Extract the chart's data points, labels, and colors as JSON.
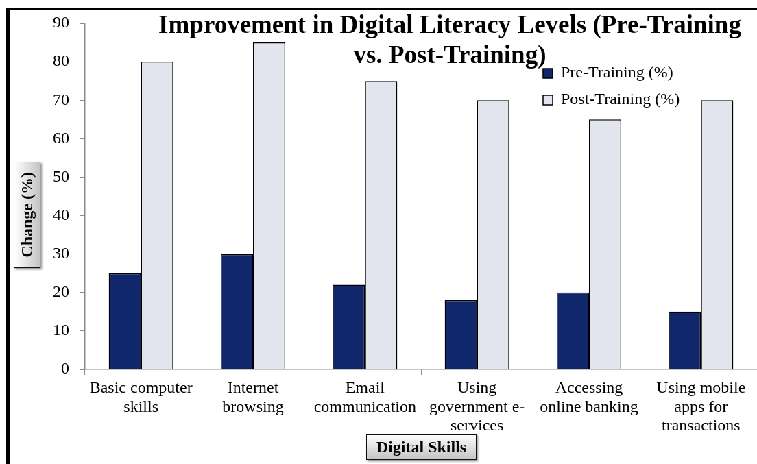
{
  "chart_data": {
    "type": "bar",
    "title": "Improvement in Digital Literacy Levels (Pre-Training vs. Post-Training)",
    "xlabel": "Digital Skills",
    "ylabel": "Change (%)",
    "categories": [
      "Basic computer skills",
      "Internet browsing",
      "Email communication",
      "Using government e-services",
      "Accessing online banking",
      "Using mobile apps for transactions"
    ],
    "series": [
      {
        "name": "Pre-Training (%)",
        "color": "#10286b",
        "values": [
          25,
          30,
          22,
          18,
          20,
          15
        ]
      },
      {
        "name": "Post-Training (%)",
        "color": "#e2e5ed",
        "values": [
          80,
          85,
          75,
          70,
          65,
          70
        ]
      }
    ],
    "ylim": [
      0,
      90
    ],
    "yticks": [
      0,
      10,
      20,
      30,
      40,
      50,
      60,
      70,
      80,
      90
    ],
    "legend": "top right"
  }
}
